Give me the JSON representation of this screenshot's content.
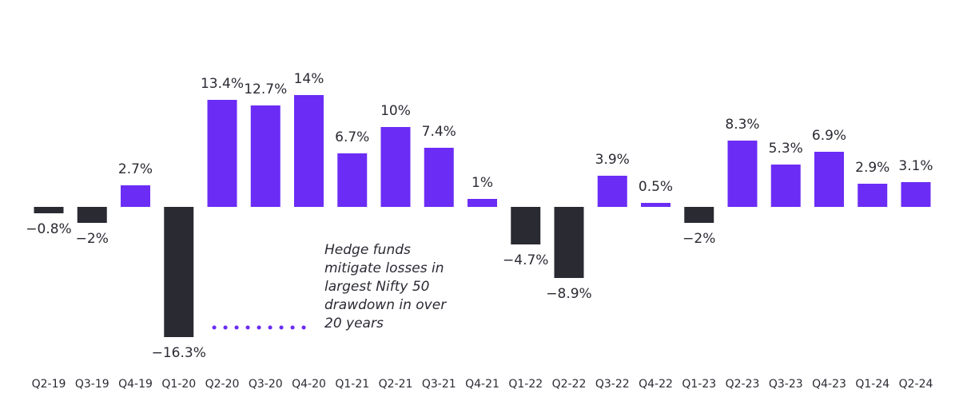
{
  "chart_data": {
    "type": "bar",
    "categories": [
      "Q2-19",
      "Q3-19",
      "Q4-19",
      "Q1-20",
      "Q2-20",
      "Q3-20",
      "Q4-20",
      "Q1-21",
      "Q2-21",
      "Q3-21",
      "Q4-21",
      "Q1-22",
      "Q2-22",
      "Q3-22",
      "Q4-22",
      "Q1-23",
      "Q2-23",
      "Q3-23",
      "Q4-23",
      "Q1-24",
      "Q2-24"
    ],
    "values": [
      -0.8,
      -2,
      2.7,
      -16.3,
      13.4,
      12.7,
      14,
      6.7,
      10,
      7.4,
      1,
      -4.7,
      -8.9,
      3.9,
      0.5,
      -2,
      8.3,
      5.3,
      6.9,
      2.9,
      3.1
    ],
    "value_labels": [
      "−0.8%",
      "−2%",
      "2.7%",
      "−16.3%",
      "13.4%",
      "12.7%",
      "14%",
      "6.7%",
      "10%",
      "7.4%",
      "1%",
      "−4.7%",
      "−8.9%",
      "3.9%",
      "0.5%",
      "−2%",
      "8.3%",
      "5.3%",
      "6.9%",
      "2.9%",
      "3.1%"
    ],
    "positive_color": "#6b2cf5",
    "negative_color": "#2a2a33",
    "annotation": [
      "Hedge funds",
      "mitigate losses in",
      "largest Nifty 50",
      "drawdown in over",
      "20 years"
    ]
  }
}
